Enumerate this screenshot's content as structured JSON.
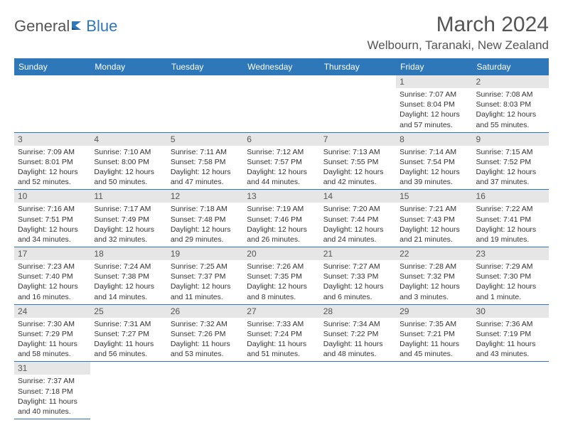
{
  "logo": {
    "text1": "General",
    "text2": "Blue"
  },
  "title": "March 2024",
  "location": "Welbourn, Taranaki, New Zealand",
  "colors": {
    "header_bg": "#2e77b8",
    "header_text": "#ffffff",
    "daynum_bg": "#e6e6e6",
    "rule": "#2e77b8",
    "title_color": "#555555"
  },
  "day_headers": [
    "Sunday",
    "Monday",
    "Tuesday",
    "Wednesday",
    "Thursday",
    "Friday",
    "Saturday"
  ],
  "weeks": [
    [
      null,
      null,
      null,
      null,
      null,
      {
        "n": "1",
        "sr": "Sunrise: 7:07 AM",
        "ss": "Sunset: 8:04 PM",
        "dl": "Daylight: 12 hours and 57 minutes."
      },
      {
        "n": "2",
        "sr": "Sunrise: 7:08 AM",
        "ss": "Sunset: 8:03 PM",
        "dl": "Daylight: 12 hours and 55 minutes."
      }
    ],
    [
      {
        "n": "3",
        "sr": "Sunrise: 7:09 AM",
        "ss": "Sunset: 8:01 PM",
        "dl": "Daylight: 12 hours and 52 minutes."
      },
      {
        "n": "4",
        "sr": "Sunrise: 7:10 AM",
        "ss": "Sunset: 8:00 PM",
        "dl": "Daylight: 12 hours and 50 minutes."
      },
      {
        "n": "5",
        "sr": "Sunrise: 7:11 AM",
        "ss": "Sunset: 7:58 PM",
        "dl": "Daylight: 12 hours and 47 minutes."
      },
      {
        "n": "6",
        "sr": "Sunrise: 7:12 AM",
        "ss": "Sunset: 7:57 PM",
        "dl": "Daylight: 12 hours and 44 minutes."
      },
      {
        "n": "7",
        "sr": "Sunrise: 7:13 AM",
        "ss": "Sunset: 7:55 PM",
        "dl": "Daylight: 12 hours and 42 minutes."
      },
      {
        "n": "8",
        "sr": "Sunrise: 7:14 AM",
        "ss": "Sunset: 7:54 PM",
        "dl": "Daylight: 12 hours and 39 minutes."
      },
      {
        "n": "9",
        "sr": "Sunrise: 7:15 AM",
        "ss": "Sunset: 7:52 PM",
        "dl": "Daylight: 12 hours and 37 minutes."
      }
    ],
    [
      {
        "n": "10",
        "sr": "Sunrise: 7:16 AM",
        "ss": "Sunset: 7:51 PM",
        "dl": "Daylight: 12 hours and 34 minutes."
      },
      {
        "n": "11",
        "sr": "Sunrise: 7:17 AM",
        "ss": "Sunset: 7:49 PM",
        "dl": "Daylight: 12 hours and 32 minutes."
      },
      {
        "n": "12",
        "sr": "Sunrise: 7:18 AM",
        "ss": "Sunset: 7:48 PM",
        "dl": "Daylight: 12 hours and 29 minutes."
      },
      {
        "n": "13",
        "sr": "Sunrise: 7:19 AM",
        "ss": "Sunset: 7:46 PM",
        "dl": "Daylight: 12 hours and 26 minutes."
      },
      {
        "n": "14",
        "sr": "Sunrise: 7:20 AM",
        "ss": "Sunset: 7:44 PM",
        "dl": "Daylight: 12 hours and 24 minutes."
      },
      {
        "n": "15",
        "sr": "Sunrise: 7:21 AM",
        "ss": "Sunset: 7:43 PM",
        "dl": "Daylight: 12 hours and 21 minutes."
      },
      {
        "n": "16",
        "sr": "Sunrise: 7:22 AM",
        "ss": "Sunset: 7:41 PM",
        "dl": "Daylight: 12 hours and 19 minutes."
      }
    ],
    [
      {
        "n": "17",
        "sr": "Sunrise: 7:23 AM",
        "ss": "Sunset: 7:40 PM",
        "dl": "Daylight: 12 hours and 16 minutes."
      },
      {
        "n": "18",
        "sr": "Sunrise: 7:24 AM",
        "ss": "Sunset: 7:38 PM",
        "dl": "Daylight: 12 hours and 14 minutes."
      },
      {
        "n": "19",
        "sr": "Sunrise: 7:25 AM",
        "ss": "Sunset: 7:37 PM",
        "dl": "Daylight: 12 hours and 11 minutes."
      },
      {
        "n": "20",
        "sr": "Sunrise: 7:26 AM",
        "ss": "Sunset: 7:35 PM",
        "dl": "Daylight: 12 hours and 8 minutes."
      },
      {
        "n": "21",
        "sr": "Sunrise: 7:27 AM",
        "ss": "Sunset: 7:33 PM",
        "dl": "Daylight: 12 hours and 6 minutes."
      },
      {
        "n": "22",
        "sr": "Sunrise: 7:28 AM",
        "ss": "Sunset: 7:32 PM",
        "dl": "Daylight: 12 hours and 3 minutes."
      },
      {
        "n": "23",
        "sr": "Sunrise: 7:29 AM",
        "ss": "Sunset: 7:30 PM",
        "dl": "Daylight: 12 hours and 1 minute."
      }
    ],
    [
      {
        "n": "24",
        "sr": "Sunrise: 7:30 AM",
        "ss": "Sunset: 7:29 PM",
        "dl": "Daylight: 11 hours and 58 minutes."
      },
      {
        "n": "25",
        "sr": "Sunrise: 7:31 AM",
        "ss": "Sunset: 7:27 PM",
        "dl": "Daylight: 11 hours and 56 minutes."
      },
      {
        "n": "26",
        "sr": "Sunrise: 7:32 AM",
        "ss": "Sunset: 7:26 PM",
        "dl": "Daylight: 11 hours and 53 minutes."
      },
      {
        "n": "27",
        "sr": "Sunrise: 7:33 AM",
        "ss": "Sunset: 7:24 PM",
        "dl": "Daylight: 11 hours and 51 minutes."
      },
      {
        "n": "28",
        "sr": "Sunrise: 7:34 AM",
        "ss": "Sunset: 7:22 PM",
        "dl": "Daylight: 11 hours and 48 minutes."
      },
      {
        "n": "29",
        "sr": "Sunrise: 7:35 AM",
        "ss": "Sunset: 7:21 PM",
        "dl": "Daylight: 11 hours and 45 minutes."
      },
      {
        "n": "30",
        "sr": "Sunrise: 7:36 AM",
        "ss": "Sunset: 7:19 PM",
        "dl": "Daylight: 11 hours and 43 minutes."
      }
    ],
    [
      {
        "n": "31",
        "sr": "Sunrise: 7:37 AM",
        "ss": "Sunset: 7:18 PM",
        "dl": "Daylight: 11 hours and 40 minutes."
      },
      null,
      null,
      null,
      null,
      null,
      null
    ]
  ]
}
